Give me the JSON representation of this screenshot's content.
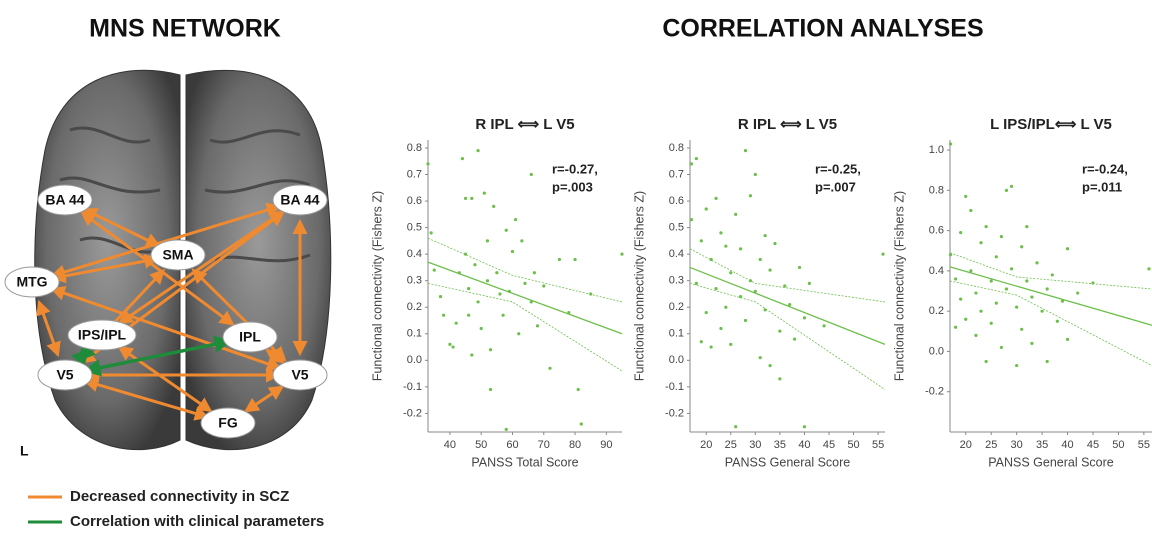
{
  "headers": {
    "left": "MNS NETWORK",
    "right": "CORRELATION ANALYSES"
  },
  "diagram": {
    "nodes": [
      "BA 44",
      "SMA",
      "BA 44",
      "MTG",
      "IPS/IPL",
      "IPL",
      "V5",
      "V5",
      "FG"
    ],
    "side_label": "L"
  },
  "legend": [
    {
      "label": "Decreased connectivity  in SCZ",
      "color": "#f08a30"
    },
    {
      "label": "Correlation with clinical parameters",
      "color": "#1e8c3a"
    }
  ],
  "chart_data": [
    {
      "type": "scatter",
      "title": "R IPL ⟺ L V5",
      "x_label": "PANSS Total Score",
      "y_label": "Functional connectivity (Fishers Z)",
      "annotation": [
        "r=-0.27,",
        "p=.003"
      ],
      "color": "#6cbf4a",
      "xlim": [
        33,
        95
      ],
      "xticks": [
        40,
        50,
        60,
        70,
        80,
        90
      ],
      "ylim": [
        -0.27,
        0.83
      ],
      "yticks": [
        -0.2,
        -0.1,
        {
          "value": 0,
          "label": "0.0"
        },
        0.1,
        0.2,
        0.3,
        0.4,
        0.5,
        0.6,
        0.7,
        0.8
      ],
      "x": [
        33,
        34,
        35,
        37,
        38,
        40,
        41,
        42,
        43,
        44,
        45,
        45,
        46,
        46,
        47,
        47,
        48,
        49,
        49,
        50,
        51,
        52,
        52,
        53,
        53,
        54,
        55,
        56,
        57,
        58,
        58,
        59,
        60,
        61,
        62,
        63,
        64,
        66,
        66,
        67,
        68,
        70,
        72,
        75,
        78,
        80,
        81,
        82,
        85,
        95
      ],
      "values": [
        0.74,
        0.48,
        0.34,
        0.24,
        0.17,
        0.06,
        0.05,
        0.14,
        0.33,
        0.76,
        0.4,
        0.61,
        0.27,
        0.17,
        0.61,
        0.02,
        0.36,
        0.79,
        0.22,
        0.12,
        0.63,
        0.45,
        0.3,
        0.04,
        -0.11,
        0.58,
        0.33,
        0.25,
        0.17,
        0.49,
        -0.26,
        0.26,
        0.41,
        0.53,
        0.1,
        0.45,
        0.29,
        0.7,
        0.22,
        0.33,
        0.13,
        0.28,
        -0.03,
        0.38,
        0.18,
        0.38,
        -0.11,
        -0.24,
        0.25,
        0.4
      ],
      "fit": {
        "x": [
          33,
          95
        ],
        "values": [
          0.37,
          0.1
        ]
      },
      "ci_upper": {
        "x": [
          33,
          60,
          95
        ],
        "values": [
          0.46,
          0.32,
          0.22
        ]
      },
      "ci_lower": {
        "x": [
          33,
          60,
          95
        ],
        "values": [
          0.29,
          0.22,
          -0.04
        ]
      }
    },
    {
      "type": "scatter",
      "title": "R IPL ⟺ L V5",
      "x_label": "PANSS General Score",
      "y_label": "Functional connectivity (Fishers Z)",
      "annotation": [
        "r=-0.25,",
        "p=.007"
      ],
      "color": "#6cbf4a",
      "xlim": [
        16.7,
        56.4
      ],
      "xticks": [
        20,
        25,
        30,
        35,
        40,
        45,
        50,
        55
      ],
      "ylim": [
        -0.27,
        0.83
      ],
      "yticks": [
        -0.2,
        -0.1,
        {
          "value": 0,
          "label": "0.0"
        },
        0.1,
        0.2,
        0.3,
        0.4,
        0.5,
        0.6,
        0.7,
        0.8
      ],
      "x": [
        17,
        17,
        18,
        18,
        19,
        19,
        20,
        20,
        21,
        21,
        22,
        22,
        23,
        23,
        24,
        24,
        25,
        25,
        26,
        26,
        27,
        27,
        28,
        28,
        29,
        29,
        30,
        30,
        31,
        31,
        32,
        32,
        33,
        33,
        34,
        35,
        35,
        36,
        37,
        38,
        39,
        40,
        40,
        41,
        44,
        56
      ],
      "values": [
        0.74,
        0.53,
        0.76,
        0.29,
        0.45,
        0.07,
        0.18,
        0.57,
        0.38,
        0.05,
        0.61,
        0.27,
        0.12,
        0.48,
        0.43,
        0.2,
        0.06,
        0.33,
        0.55,
        -0.25,
        0.24,
        0.42,
        0.79,
        0.15,
        0.3,
        0.62,
        0.7,
        0.26,
        0.01,
        0.38,
        0.47,
        0.19,
        0.34,
        -0.02,
        0.44,
        0.11,
        -0.07,
        0.28,
        0.21,
        0.08,
        0.35,
        0.16,
        -0.25,
        0.29,
        0.13,
        0.4
      ],
      "fit": {
        "x": [
          16.7,
          56.4
        ],
        "values": [
          0.35,
          0.06
        ]
      },
      "ci_upper": {
        "x": [
          16.7,
          30,
          56.4
        ],
        "values": [
          0.42,
          0.29,
          0.22
        ]
      },
      "ci_lower": {
        "x": [
          16.7,
          30,
          56.4
        ],
        "values": [
          0.29,
          0.22,
          -0.11
        ]
      }
    },
    {
      "type": "scatter",
      "title": "L IPS/IPL⟺ L V5",
      "x_label": "PANSS General Score",
      "y_label": "Functional connectivity (Fishers Z)",
      "annotation": [
        "r=-0.24,",
        "p=.011"
      ],
      "color": "#6cbf4a",
      "xlim": [
        16.9,
        56.6
      ],
      "xticks": [
        20,
        25,
        30,
        35,
        40,
        45,
        50,
        55
      ],
      "ylim": [
        -0.4,
        1.05
      ],
      "yticks": [
        -0.2,
        {
          "value": 0,
          "label": "0.0"
        },
        0.2,
        0.4,
        0.6,
        0.8,
        {
          "value": 1,
          "label": "1.0"
        }
      ],
      "x": [
        17,
        17,
        18,
        18,
        19,
        19,
        20,
        20,
        21,
        21,
        22,
        22,
        23,
        23,
        24,
        24,
        25,
        25,
        26,
        26,
        27,
        27,
        28,
        28,
        29,
        29,
        30,
        30,
        31,
        31,
        32,
        32,
        33,
        33,
        34,
        35,
        36,
        36,
        37,
        38,
        39,
        40,
        40,
        42,
        45,
        56
      ],
      "values": [
        1.03,
        0.48,
        0.36,
        0.12,
        0.26,
        0.59,
        0.77,
        0.16,
        0.4,
        0.7,
        0.29,
        0.08,
        0.54,
        0.2,
        0.62,
        -0.05,
        0.35,
        0.14,
        0.47,
        0.24,
        0.57,
        0.02,
        0.8,
        0.31,
        0.82,
        0.41,
        0.22,
        -0.07,
        0.52,
        0.11,
        0.62,
        0.35,
        0.27,
        0.04,
        0.44,
        0.2,
        0.31,
        -0.05,
        0.38,
        0.15,
        0.25,
        0.51,
        0.06,
        0.29,
        0.34,
        0.41
      ],
      "fit": {
        "x": [
          16.9,
          56.6
        ],
        "values": [
          0.42,
          0.13
        ]
      },
      "ci_upper": {
        "x": [
          16.9,
          30,
          56.6
        ],
        "values": [
          0.49,
          0.37,
          0.31
        ]
      },
      "ci_lower": {
        "x": [
          16.9,
          30,
          56.6
        ],
        "values": [
          0.35,
          0.28,
          -0.07
        ]
      }
    }
  ]
}
